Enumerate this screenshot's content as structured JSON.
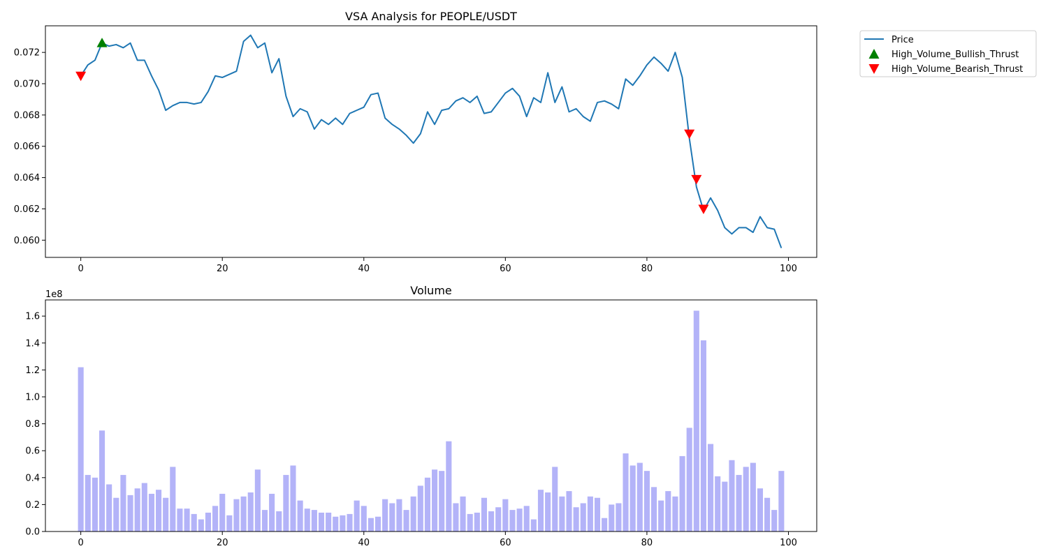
{
  "chart_data": [
    {
      "type": "line",
      "title": "VSA Analysis for PEOPLE/USDT",
      "xlabel": "",
      "ylabel": "",
      "xlim": [
        -5,
        104
      ],
      "ylim": [
        0.0589,
        0.0737
      ],
      "x_ticks": [
        0,
        20,
        40,
        60,
        80,
        100
      ],
      "y_ticks": [
        0.06,
        0.062,
        0.064,
        0.066,
        0.068,
        0.07,
        0.072
      ],
      "y_tick_labels": [
        "0.060",
        "0.062",
        "0.064",
        "0.066",
        "0.068",
        "0.070",
        "0.072"
      ],
      "grid": false,
      "legend_position": "outside-right",
      "legend": [
        "Price",
        "High_Volume_Bullish_Thrust",
        "High_Volume_Bearish_Thrust"
      ],
      "series": [
        {
          "name": "Price",
          "color": "#1f77b4",
          "x": [
            0,
            1,
            2,
            3,
            4,
            5,
            6,
            7,
            8,
            9,
            10,
            11,
            12,
            13,
            14,
            15,
            16,
            17,
            18,
            19,
            20,
            21,
            22,
            23,
            24,
            25,
            26,
            27,
            28,
            29,
            30,
            31,
            32,
            33,
            34,
            35,
            36,
            37,
            38,
            39,
            40,
            41,
            42,
            43,
            44,
            45,
            46,
            47,
            48,
            49,
            50,
            51,
            52,
            53,
            54,
            55,
            56,
            57,
            58,
            59,
            60,
            61,
            62,
            63,
            64,
            65,
            66,
            67,
            68,
            69,
            70,
            71,
            72,
            73,
            74,
            75,
            76,
            77,
            78,
            79,
            80,
            81,
            82,
            83,
            84,
            85,
            86,
            87,
            88,
            89,
            90,
            91,
            92,
            93,
            94,
            95,
            96,
            97,
            98,
            99
          ],
          "values": [
            0.0705,
            0.0712,
            0.0715,
            0.0726,
            0.0724,
            0.0725,
            0.0723,
            0.0726,
            0.0715,
            0.0715,
            0.0705,
            0.0696,
            0.0683,
            0.0686,
            0.0688,
            0.0688,
            0.0687,
            0.0688,
            0.0695,
            0.0705,
            0.0704,
            0.0706,
            0.0708,
            0.0727,
            0.0731,
            0.0723,
            0.0726,
            0.0707,
            0.0716,
            0.0692,
            0.0679,
            0.0684,
            0.0682,
            0.0671,
            0.0677,
            0.0674,
            0.0678,
            0.0674,
            0.0681,
            0.0683,
            0.0685,
            0.0693,
            0.0694,
            0.0678,
            0.0674,
            0.0671,
            0.0667,
            0.0662,
            0.0668,
            0.0682,
            0.0674,
            0.0683,
            0.0684,
            0.0689,
            0.0691,
            0.0688,
            0.0692,
            0.0681,
            0.0682,
            0.0688,
            0.0694,
            0.0697,
            0.0692,
            0.0679,
            0.0691,
            0.0688,
            0.0707,
            0.0688,
            0.0698,
            0.0682,
            0.0684,
            0.0679,
            0.0676,
            0.0688,
            0.0689,
            0.0687,
            0.0684,
            0.0703,
            0.0699,
            0.0705,
            0.0712,
            0.0717,
            0.0713,
            0.0708,
            0.072,
            0.0704,
            0.0665,
            0.0634,
            0.0619,
            0.0627,
            0.0619,
            0.0608,
            0.0604,
            0.0608,
            0.0608,
            0.0605,
            0.0615,
            0.0608,
            0.0607,
            0.0595
          ]
        },
        {
          "name": "High_Volume_Bullish_Thrust",
          "color": "#008000",
          "marker": "triangle-up",
          "x": [
            3
          ],
          "values": [
            0.0726
          ]
        },
        {
          "name": "High_Volume_Bearish_Thrust",
          "color": "#ff0000",
          "marker": "triangle-down",
          "x": [
            0,
            86,
            87,
            88
          ],
          "values": [
            0.0705,
            0.0668,
            0.0639,
            0.062
          ]
        }
      ]
    },
    {
      "type": "bar",
      "title": "Volume",
      "xlabel": "",
      "ylabel": "",
      "offset_label": "1e8",
      "xlim": [
        -5,
        104
      ],
      "ylim": [
        0,
        1.72
      ],
      "x_ticks": [
        0,
        20,
        40,
        60,
        80,
        100
      ],
      "y_ticks": [
        0.0,
        0.2,
        0.4,
        0.6,
        0.8,
        1.0,
        1.2,
        1.4,
        1.6
      ],
      "y_tick_labels": [
        "0.0",
        "0.2",
        "0.4",
        "0.6",
        "0.8",
        "1.0",
        "1.2",
        "1.4",
        "1.6"
      ],
      "grid": false,
      "bar_color": "#b3b3f8",
      "x": [
        0,
        1,
        2,
        3,
        4,
        5,
        6,
        7,
        8,
        9,
        10,
        11,
        12,
        13,
        14,
        15,
        16,
        17,
        18,
        19,
        20,
        21,
        22,
        23,
        24,
        25,
        26,
        27,
        28,
        29,
        30,
        31,
        32,
        33,
        34,
        35,
        36,
        37,
        38,
        39,
        40,
        41,
        42,
        43,
        44,
        45,
        46,
        47,
        48,
        49,
        50,
        51,
        52,
        53,
        54,
        55,
        56,
        57,
        58,
        59,
        60,
        61,
        62,
        63,
        64,
        65,
        66,
        67,
        68,
        69,
        70,
        71,
        72,
        73,
        74,
        75,
        76,
        77,
        78,
        79,
        80,
        81,
        82,
        83,
        84,
        85,
        86,
        87,
        88,
        89,
        90,
        91,
        92,
        93,
        94,
        95,
        96,
        97,
        98,
        99
      ],
      "values": [
        1.22,
        0.42,
        0.4,
        0.75,
        0.35,
        0.25,
        0.42,
        0.27,
        0.32,
        0.36,
        0.28,
        0.31,
        0.25,
        0.48,
        0.17,
        0.17,
        0.13,
        0.09,
        0.14,
        0.19,
        0.28,
        0.12,
        0.24,
        0.26,
        0.29,
        0.46,
        0.16,
        0.28,
        0.15,
        0.42,
        0.49,
        0.23,
        0.17,
        0.16,
        0.14,
        0.14,
        0.11,
        0.12,
        0.13,
        0.23,
        0.19,
        0.1,
        0.11,
        0.24,
        0.21,
        0.24,
        0.16,
        0.26,
        0.34,
        0.4,
        0.46,
        0.45,
        0.67,
        0.21,
        0.26,
        0.13,
        0.14,
        0.25,
        0.15,
        0.18,
        0.24,
        0.16,
        0.17,
        0.19,
        0.09,
        0.31,
        0.29,
        0.48,
        0.26,
        0.3,
        0.18,
        0.21,
        0.26,
        0.25,
        0.1,
        0.2,
        0.21,
        0.58,
        0.49,
        0.51,
        0.45,
        0.33,
        0.23,
        0.3,
        0.26,
        0.56,
        0.77,
        1.64,
        1.42,
        0.65,
        0.41,
        0.37,
        0.53,
        0.42,
        0.48,
        0.51,
        0.32,
        0.25,
        0.16,
        0.45
      ]
    }
  ]
}
